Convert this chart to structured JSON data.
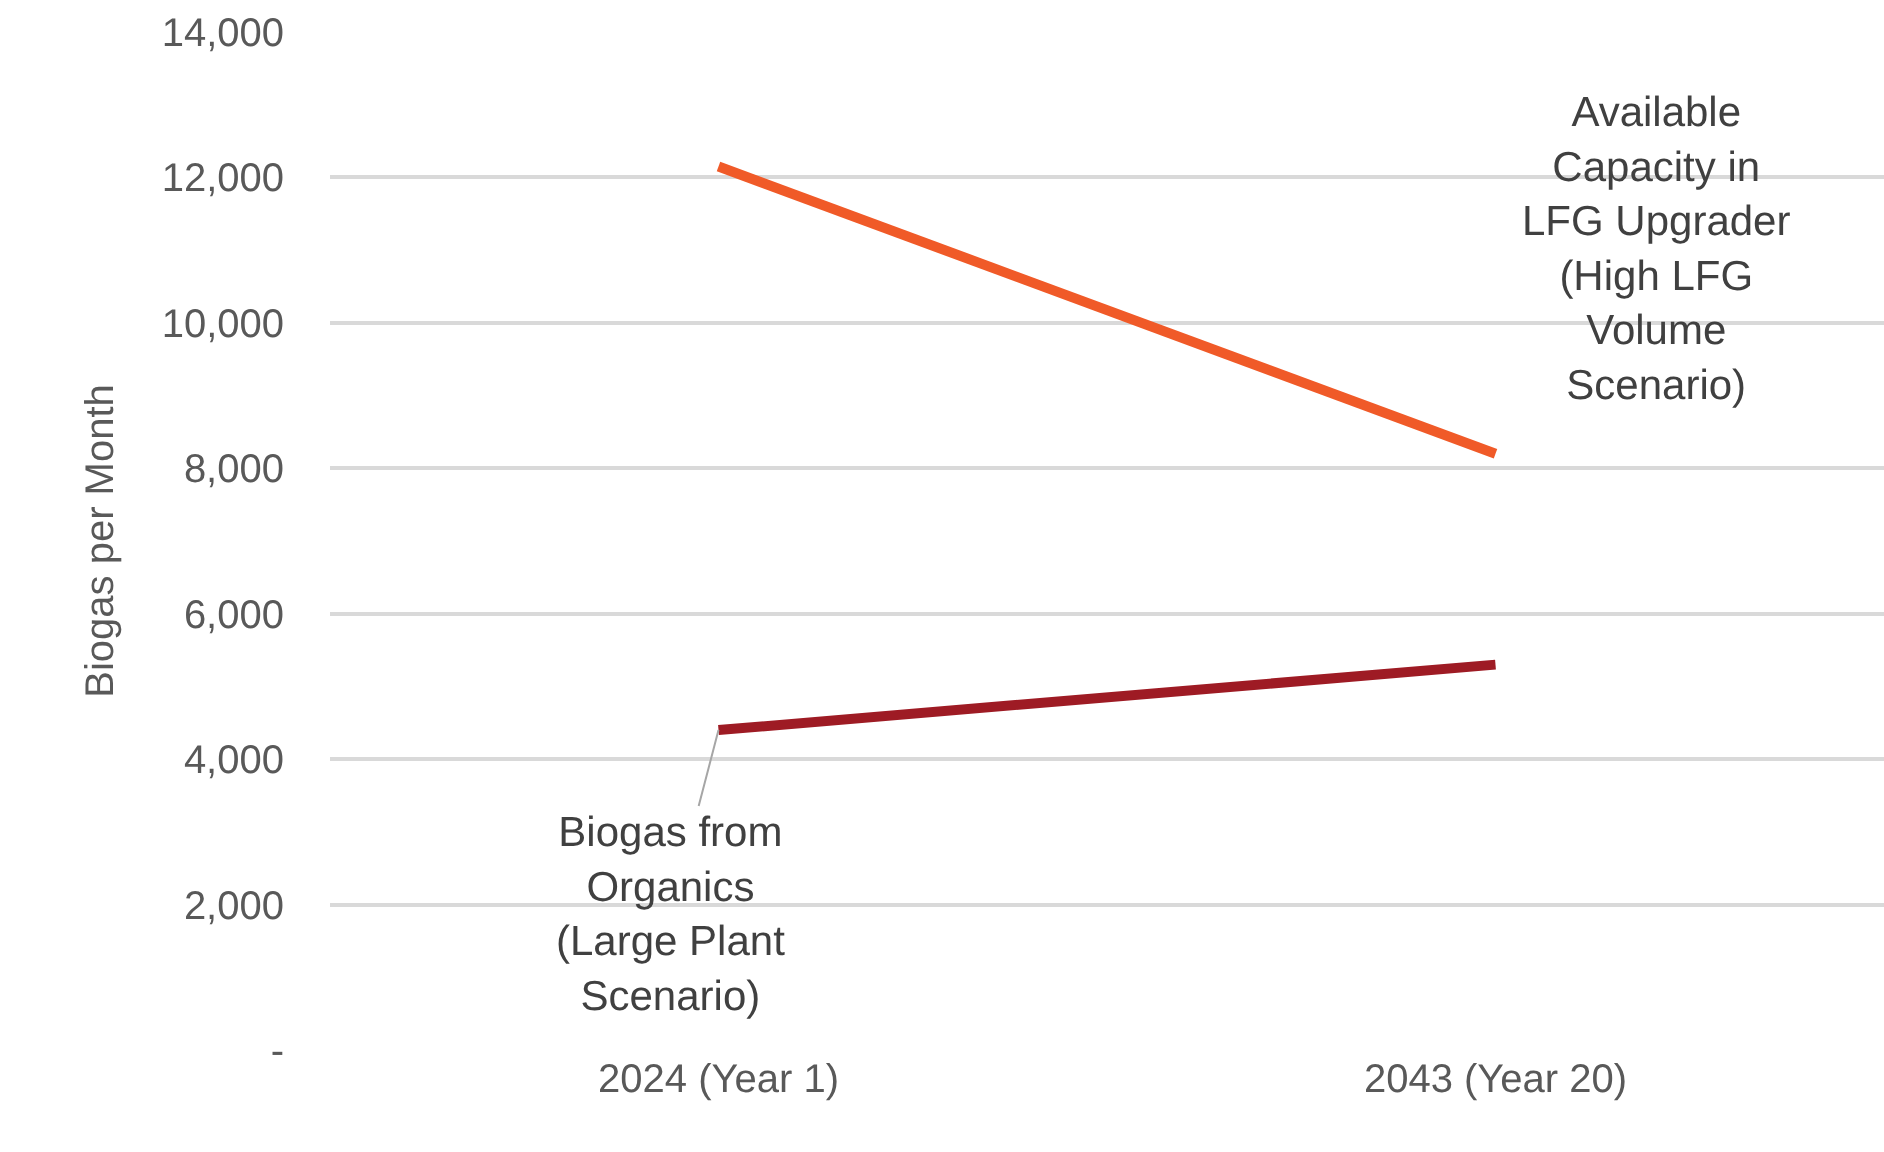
{
  "chart_data": {
    "type": "line",
    "ylabel": "Biogas per Month",
    "categories": [
      "2024 (Year 1)",
      "2043 (Year 20)"
    ],
    "series": [
      {
        "name": "Biogas from Organics (Large Plant Scenario)",
        "color": "#9e1b24",
        "values": [
          4400,
          5300
        ]
      },
      {
        "name": "Available Capacity in LFG Upgrader (High LFG Volume Scenario)",
        "color": "#f05a28",
        "values": [
          12150,
          8200
        ]
      }
    ],
    "ylim": [
      0,
      14000
    ],
    "yticks": [
      {
        "value": 0,
        "label": "-"
      },
      {
        "value": 2000,
        "label": "2,000"
      },
      {
        "value": 4000,
        "label": "4,000"
      },
      {
        "value": 6000,
        "label": "6,000"
      },
      {
        "value": 8000,
        "label": "8,000"
      },
      {
        "value": 10000,
        "label": "10,000"
      },
      {
        "value": 12000,
        "label": "12,000"
      },
      {
        "value": 14000,
        "label": "14,000"
      }
    ],
    "grid": "y",
    "legend": false,
    "marker": "none",
    "line_style": "solid"
  }
}
